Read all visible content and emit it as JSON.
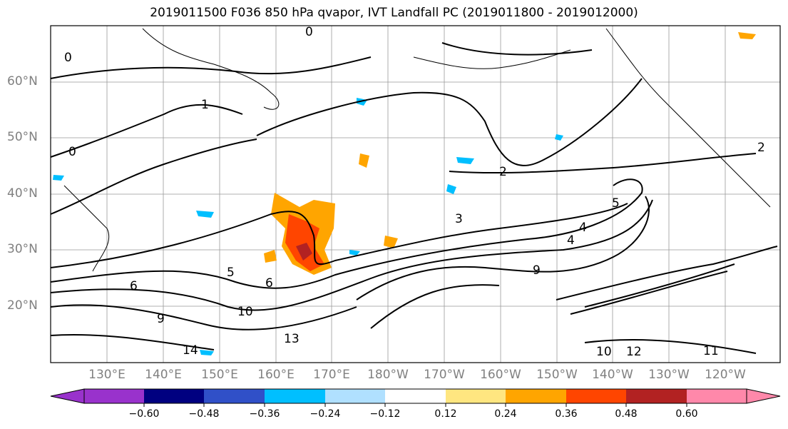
{
  "title": "2019011500 F036 850 hPa qvapor, IVT Landfall PC (2019011800 - 2019012000)",
  "lat_labels": [
    "60°N",
    "50°N",
    "40°N",
    "30°N",
    "20°N"
  ],
  "lon_labels": [
    "130°E",
    "140°E",
    "150°E",
    "160°E",
    "170°E",
    "180°W",
    "170°W",
    "160°W",
    "150°W",
    "140°W",
    "130°W",
    "120°W"
  ],
  "colorbar": {
    "ticks": [
      "−0.60",
      "−0.48",
      "−0.36",
      "−0.24",
      "−0.12",
      "0.12",
      "0.24",
      "0.36",
      "0.48",
      "0.60"
    ],
    "colors": [
      "#9932cc",
      "#000080",
      "#3050c8",
      "#00bfff",
      "#b0e0ff",
      "#ffffff",
      "#ffe680",
      "#ffa500",
      "#ff4500",
      "#b22222",
      "#ff88aa"
    ]
  },
  "contour_labels": [
    {
      "text": "0"
    },
    {
      "text": "0"
    },
    {
      "text": "0"
    },
    {
      "text": "1"
    },
    {
      "text": "2"
    },
    {
      "text": "2"
    },
    {
      "text": "3"
    },
    {
      "text": "4"
    },
    {
      "text": "4"
    },
    {
      "text": "5"
    },
    {
      "text": "5"
    },
    {
      "text": "6"
    },
    {
      "text": "6"
    },
    {
      "text": "9"
    },
    {
      "text": "9"
    },
    {
      "text": "10"
    },
    {
      "text": "10"
    },
    {
      "text": "11"
    },
    {
      "text": "12"
    },
    {
      "text": "13"
    },
    {
      "text": "14"
    }
  ]
}
